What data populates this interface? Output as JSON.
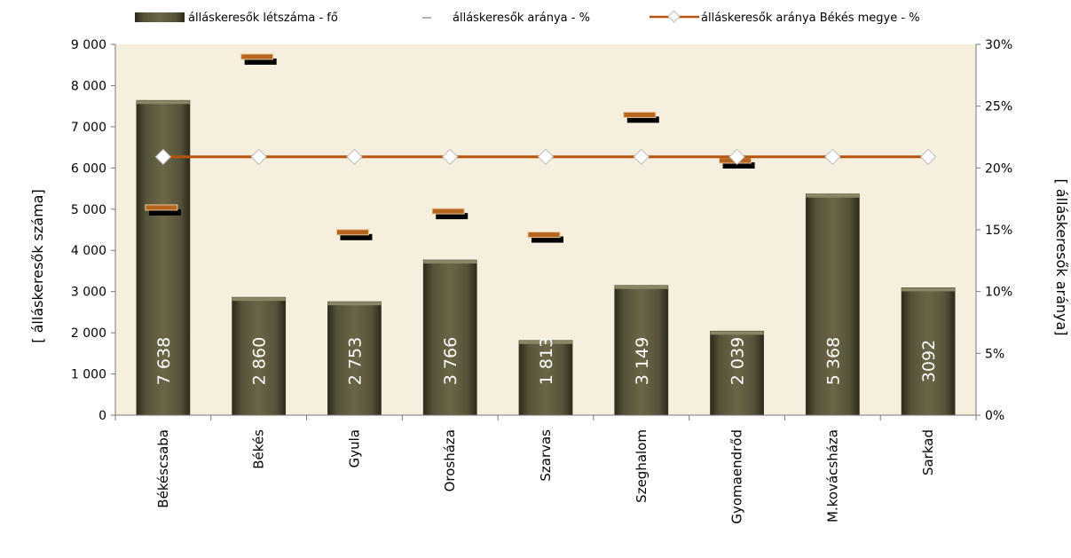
{
  "chart_data": {
    "type": "bar",
    "categories": [
      "Békéscsaba",
      "Békés",
      "Gyula",
      "Orosháza",
      "Szarvas",
      "Szeghalom",
      "Gyomaendrőd",
      "M.kovácsháza",
      "Sarkad"
    ],
    "series": [
      {
        "name": "álláskeresők létszáma - fő",
        "type": "bar",
        "axis": "left",
        "values": [
          7638,
          2860,
          2753,
          3766,
          1813,
          3149,
          2039,
          5368,
          3092
        ],
        "labels": [
          "7 638",
          "2 860",
          "2 753",
          "3 766",
          "1 813",
          "3 149",
          "2 039",
          "5 368",
          "3092"
        ],
        "color": "#4a4630"
      },
      {
        "name": "álláskeresők aránya - %",
        "type": "marker",
        "axis": "right",
        "values": [
          16.8,
          29.0,
          14.8,
          16.5,
          14.6,
          24.3,
          20.6,
          null,
          null
        ],
        "color": "#b5651d"
      },
      {
        "name": "álláskeresők aránya Békés megye - %",
        "type": "line",
        "axis": "right",
        "values": [
          20.9,
          20.9,
          20.9,
          20.9,
          20.9,
          20.9,
          20.9,
          20.9,
          20.9
        ],
        "color": "#b5520e"
      }
    ],
    "left_axis": {
      "title": "[ álláskeresők száma]",
      "range": [
        0,
        9000
      ],
      "ticks": [
        0,
        1000,
        2000,
        3000,
        4000,
        5000,
        6000,
        7000,
        8000,
        9000
      ],
      "tick_labels": [
        "0",
        "1 000",
        "2 000",
        "3 000",
        "4 000",
        "5 000",
        "6 000",
        "7 000",
        "8 000",
        "9 000"
      ]
    },
    "right_axis": {
      "title": "[ álláskeresők aránya]",
      "range": [
        0,
        30
      ],
      "ticks": [
        0,
        5,
        10,
        15,
        20,
        25,
        30
      ],
      "tick_labels": [
        "0%",
        "5%",
        "10%",
        "15%",
        "20%",
        "25%",
        "30%"
      ]
    },
    "plot_background": "#f5eedc",
    "grid": false,
    "legend_position": "top"
  }
}
